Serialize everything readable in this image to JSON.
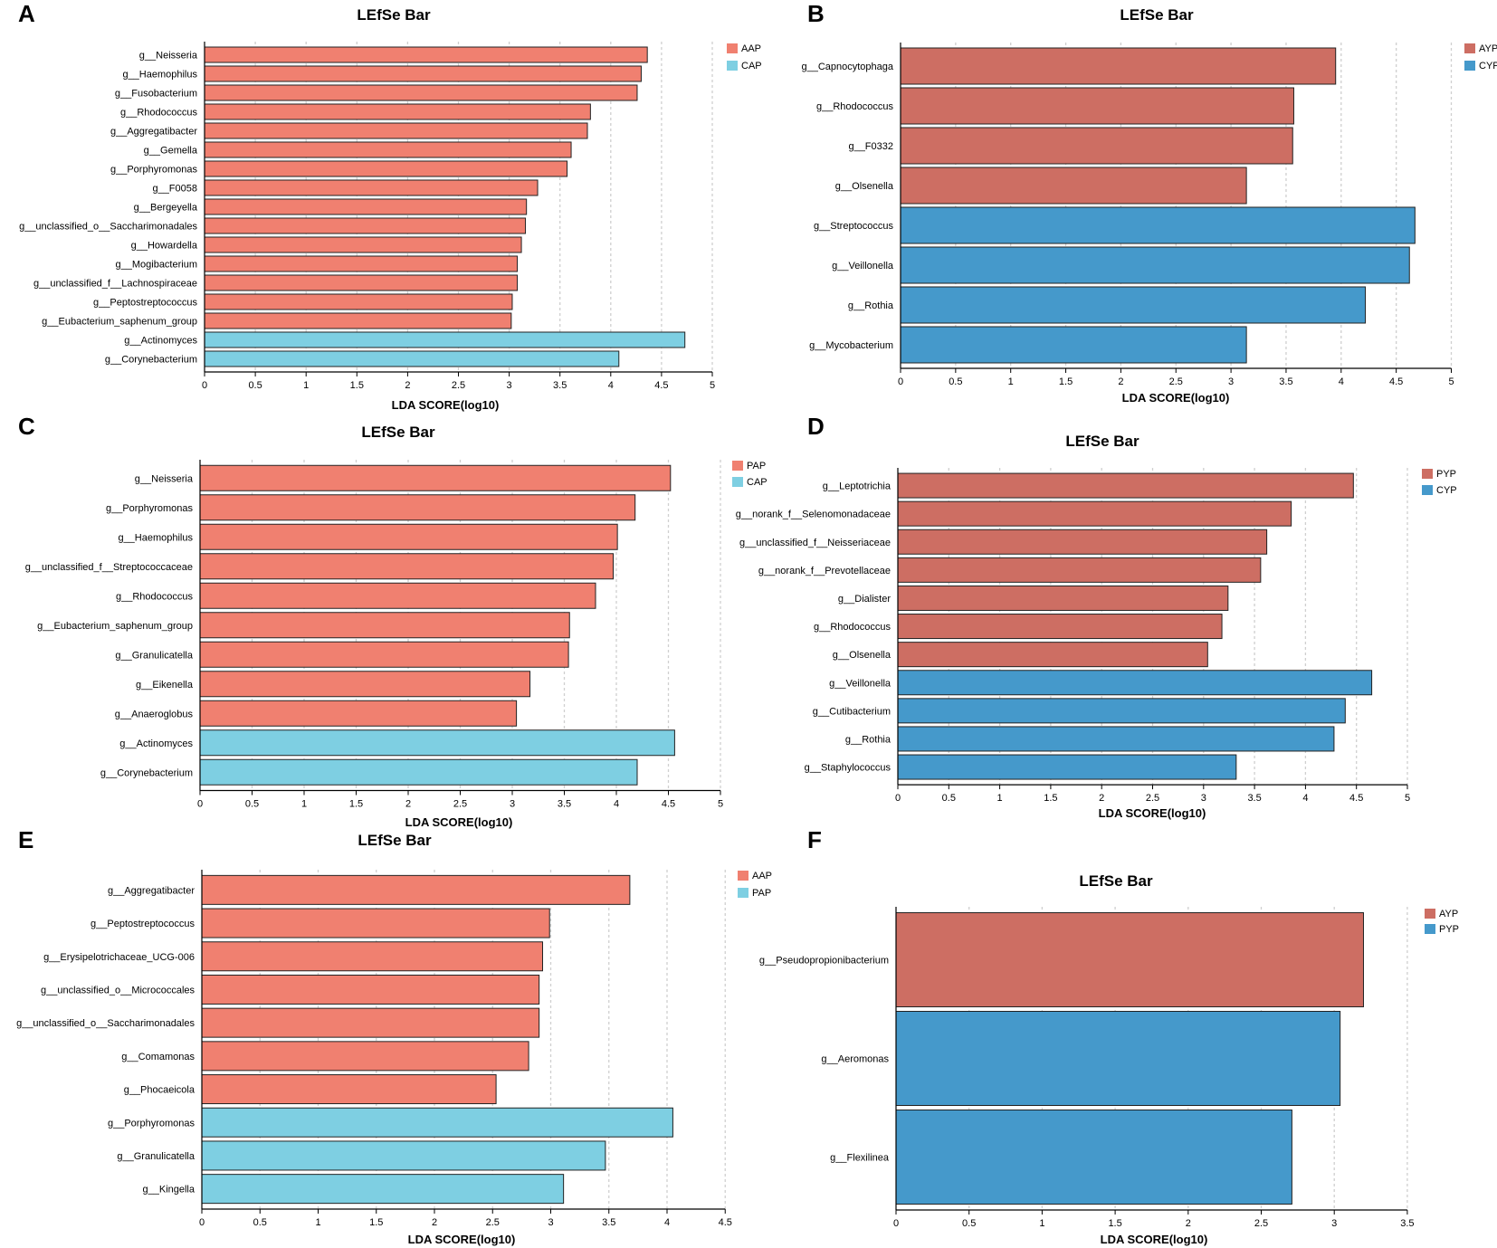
{
  "chart_data": [
    {
      "type": "bar",
      "orientation": "horizontal",
      "panel": "A",
      "title": "LEfSe Bar",
      "xlabel": "LDA SCORE(log10)",
      "ylabel": "",
      "xlim": [
        0,
        5
      ],
      "xticks": [
        "0",
        "0.5",
        "1",
        "1.5",
        "2",
        "2.5",
        "3",
        "3.5",
        "4",
        "4.5",
        "5"
      ],
      "grid": "vertical dashed",
      "legend": [
        {
          "name": "AAP",
          "color": "#f08070"
        },
        {
          "name": "CAP",
          "color": "#7ecfe2"
        }
      ],
      "legend_position": "top-right",
      "categories": [
        "g__Neisseria",
        "g__Haemophilus",
        "g__Fusobacterium",
        "g__Rhodococcus",
        "g__Aggregatibacter",
        "g__Gemella",
        "g__Porphyromonas",
        "g__F0058",
        "g__Bergeyella",
        "g__unclassified_o__Saccharimonadales",
        "g__Howardella",
        "g__Mogibacterium",
        "g__unclassified_f__Lachnospiraceae",
        "g__Peptostreptococcus",
        "g__Eubacterium_saphenum_group",
        "g__Actinomyces",
        "g__Corynebacterium"
      ],
      "values": [
        4.36,
        4.3,
        4.26,
        3.8,
        3.77,
        3.61,
        3.57,
        3.28,
        3.17,
        3.16,
        3.12,
        3.08,
        3.08,
        3.03,
        3.02,
        4.73,
        4.08
      ],
      "groups": [
        "AAP",
        "AAP",
        "AAP",
        "AAP",
        "AAP",
        "AAP",
        "AAP",
        "AAP",
        "AAP",
        "AAP",
        "AAP",
        "AAP",
        "AAP",
        "AAP",
        "AAP",
        "CAP",
        "CAP"
      ]
    },
    {
      "type": "bar",
      "orientation": "horizontal",
      "panel": "B",
      "title": "LEfSe Bar",
      "xlabel": "LDA SCORE(log10)",
      "ylabel": "",
      "xlim": [
        0,
        5
      ],
      "xticks": [
        "0",
        "0.5",
        "1",
        "1.5",
        "2",
        "2.5",
        "3",
        "3.5",
        "4",
        "4.5",
        "5"
      ],
      "grid": "vertical dashed",
      "legend": [
        {
          "name": "AYP",
          "color": "#cd6e63"
        },
        {
          "name": "CYP",
          "color": "#4599cb"
        }
      ],
      "legend_position": "top-right",
      "categories": [
        "g__Capnocytophaga",
        "g__Rhodococcus",
        "g__F0332",
        "g__Olsenella",
        "g__Streptococcus",
        "g__Veillonella",
        "g__Rothia",
        "g__Mycobacterium"
      ],
      "values": [
        3.95,
        3.57,
        3.56,
        3.14,
        4.67,
        4.62,
        4.22,
        3.14
      ],
      "groups": [
        "AYP",
        "AYP",
        "AYP",
        "AYP",
        "CYP",
        "CYP",
        "CYP",
        "CYP"
      ]
    },
    {
      "type": "bar",
      "orientation": "horizontal",
      "panel": "C",
      "title": "LEfSe Bar",
      "xlabel": "LDA SCORE(log10)",
      "ylabel": "",
      "xlim": [
        0,
        5
      ],
      "xticks": [
        "0",
        "0.5",
        "1",
        "1.5",
        "2",
        "2.5",
        "3",
        "3.5",
        "4",
        "4.5",
        "5"
      ],
      "grid": "vertical dashed",
      "legend": [
        {
          "name": "PAP",
          "color": "#f08070"
        },
        {
          "name": "CAP",
          "color": "#7ecfe2"
        }
      ],
      "legend_position": "top-right",
      "categories": [
        "g__Neisseria",
        "g__Porphyromonas",
        "g__Haemophilus",
        "g__unclassified_f__Streptococcaceae",
        "g__Rhodococcus",
        "g__Eubacterium_saphenum_group",
        "g__Granulicatella",
        "g__Eikenella",
        "g__Anaeroglobus",
        "g__Actinomyces",
        "g__Corynebacterium"
      ],
      "values": [
        4.52,
        4.18,
        4.01,
        3.97,
        3.8,
        3.55,
        3.54,
        3.17,
        3.04,
        4.56,
        4.2
      ],
      "groups": [
        "PAP",
        "PAP",
        "PAP",
        "PAP",
        "PAP",
        "PAP",
        "PAP",
        "PAP",
        "PAP",
        "CAP",
        "CAP"
      ]
    },
    {
      "type": "bar",
      "orientation": "horizontal",
      "panel": "D",
      "title": "LEfSe Bar",
      "xlabel": "LDA SCORE(log10)",
      "ylabel": "",
      "xlim": [
        0,
        5
      ],
      "xticks": [
        "0",
        "0.5",
        "1",
        "1.5",
        "2",
        "2.5",
        "3",
        "3.5",
        "4",
        "4.5",
        "5"
      ],
      "grid": "vertical dashed",
      "legend": [
        {
          "name": "PYP",
          "color": "#cd6e63"
        },
        {
          "name": "CYP",
          "color": "#4599cb"
        }
      ],
      "legend_position": "top-right",
      "categories": [
        "g__Leptotrichia",
        "g__norank_f__Selenomonadaceae",
        "g__unclassified_f__Neisseriaceae",
        "g__norank_f__Prevotellaceae",
        "g__Dialister",
        "g__Rhodococcus",
        "g__Olsenella",
        "g__Veillonella",
        "g__Cutibacterium",
        "g__Rothia",
        "g__Staphylococcus"
      ],
      "values": [
        4.47,
        3.86,
        3.62,
        3.56,
        3.24,
        3.18,
        3.04,
        4.65,
        4.39,
        4.28,
        3.32
      ],
      "groups": [
        "PYP",
        "PYP",
        "PYP",
        "PYP",
        "PYP",
        "PYP",
        "PYP",
        "CYP",
        "CYP",
        "CYP",
        "CYP"
      ]
    },
    {
      "type": "bar",
      "orientation": "horizontal",
      "panel": "E",
      "title": "LEfSe Bar",
      "xlabel": "LDA SCORE(log10)",
      "ylabel": "",
      "xlim": [
        0,
        4.5
      ],
      "xticks": [
        "0",
        "0.5",
        "1",
        "1.5",
        "2",
        "2.5",
        "3",
        "3.5",
        "4",
        "4.5"
      ],
      "grid": "vertical dashed",
      "legend": [
        {
          "name": "AAP",
          "color": "#f08070"
        },
        {
          "name": "PAP",
          "color": "#7ecfe2"
        }
      ],
      "legend_position": "top-right",
      "categories": [
        "g__Aggregatibacter",
        "g__Peptostreptococcus",
        "g__Erysipelotrichaceae_UCG-006",
        "g__unclassified_o__Micrococcales",
        "g__unclassified_o__Saccharimonadales",
        "g__Comamonas",
        "g__Phocaeicola",
        "g__Porphyromonas",
        "g__Granulicatella",
        "g__Kingella"
      ],
      "values": [
        3.68,
        2.99,
        2.93,
        2.9,
        2.9,
        2.81,
        2.53,
        4.05,
        3.47,
        3.11
      ],
      "groups": [
        "AAP",
        "AAP",
        "AAP",
        "AAP",
        "AAP",
        "AAP",
        "AAP",
        "PAP",
        "PAP",
        "PAP"
      ]
    },
    {
      "type": "bar",
      "orientation": "horizontal",
      "panel": "F",
      "title": "LEfSe Bar",
      "xlabel": "LDA SCORE(log10)",
      "ylabel": "",
      "xlim": [
        0,
        3.5
      ],
      "xticks": [
        "0",
        "0.5",
        "1",
        "1.5",
        "2",
        "2.5",
        "3",
        "3.5"
      ],
      "grid": "vertical dashed",
      "legend": [
        {
          "name": "AYP",
          "color": "#cd6e63"
        },
        {
          "name": "PYP",
          "color": "#4599cb"
        }
      ],
      "legend_position": "top-right",
      "categories": [
        "g__Pseudopropionibacterium",
        "g__Aeromonas",
        "g__Flexilinea"
      ],
      "values": [
        3.2,
        3.04,
        2.71
      ],
      "groups": [
        "AYP",
        "PYP",
        "PYP"
      ]
    }
  ]
}
